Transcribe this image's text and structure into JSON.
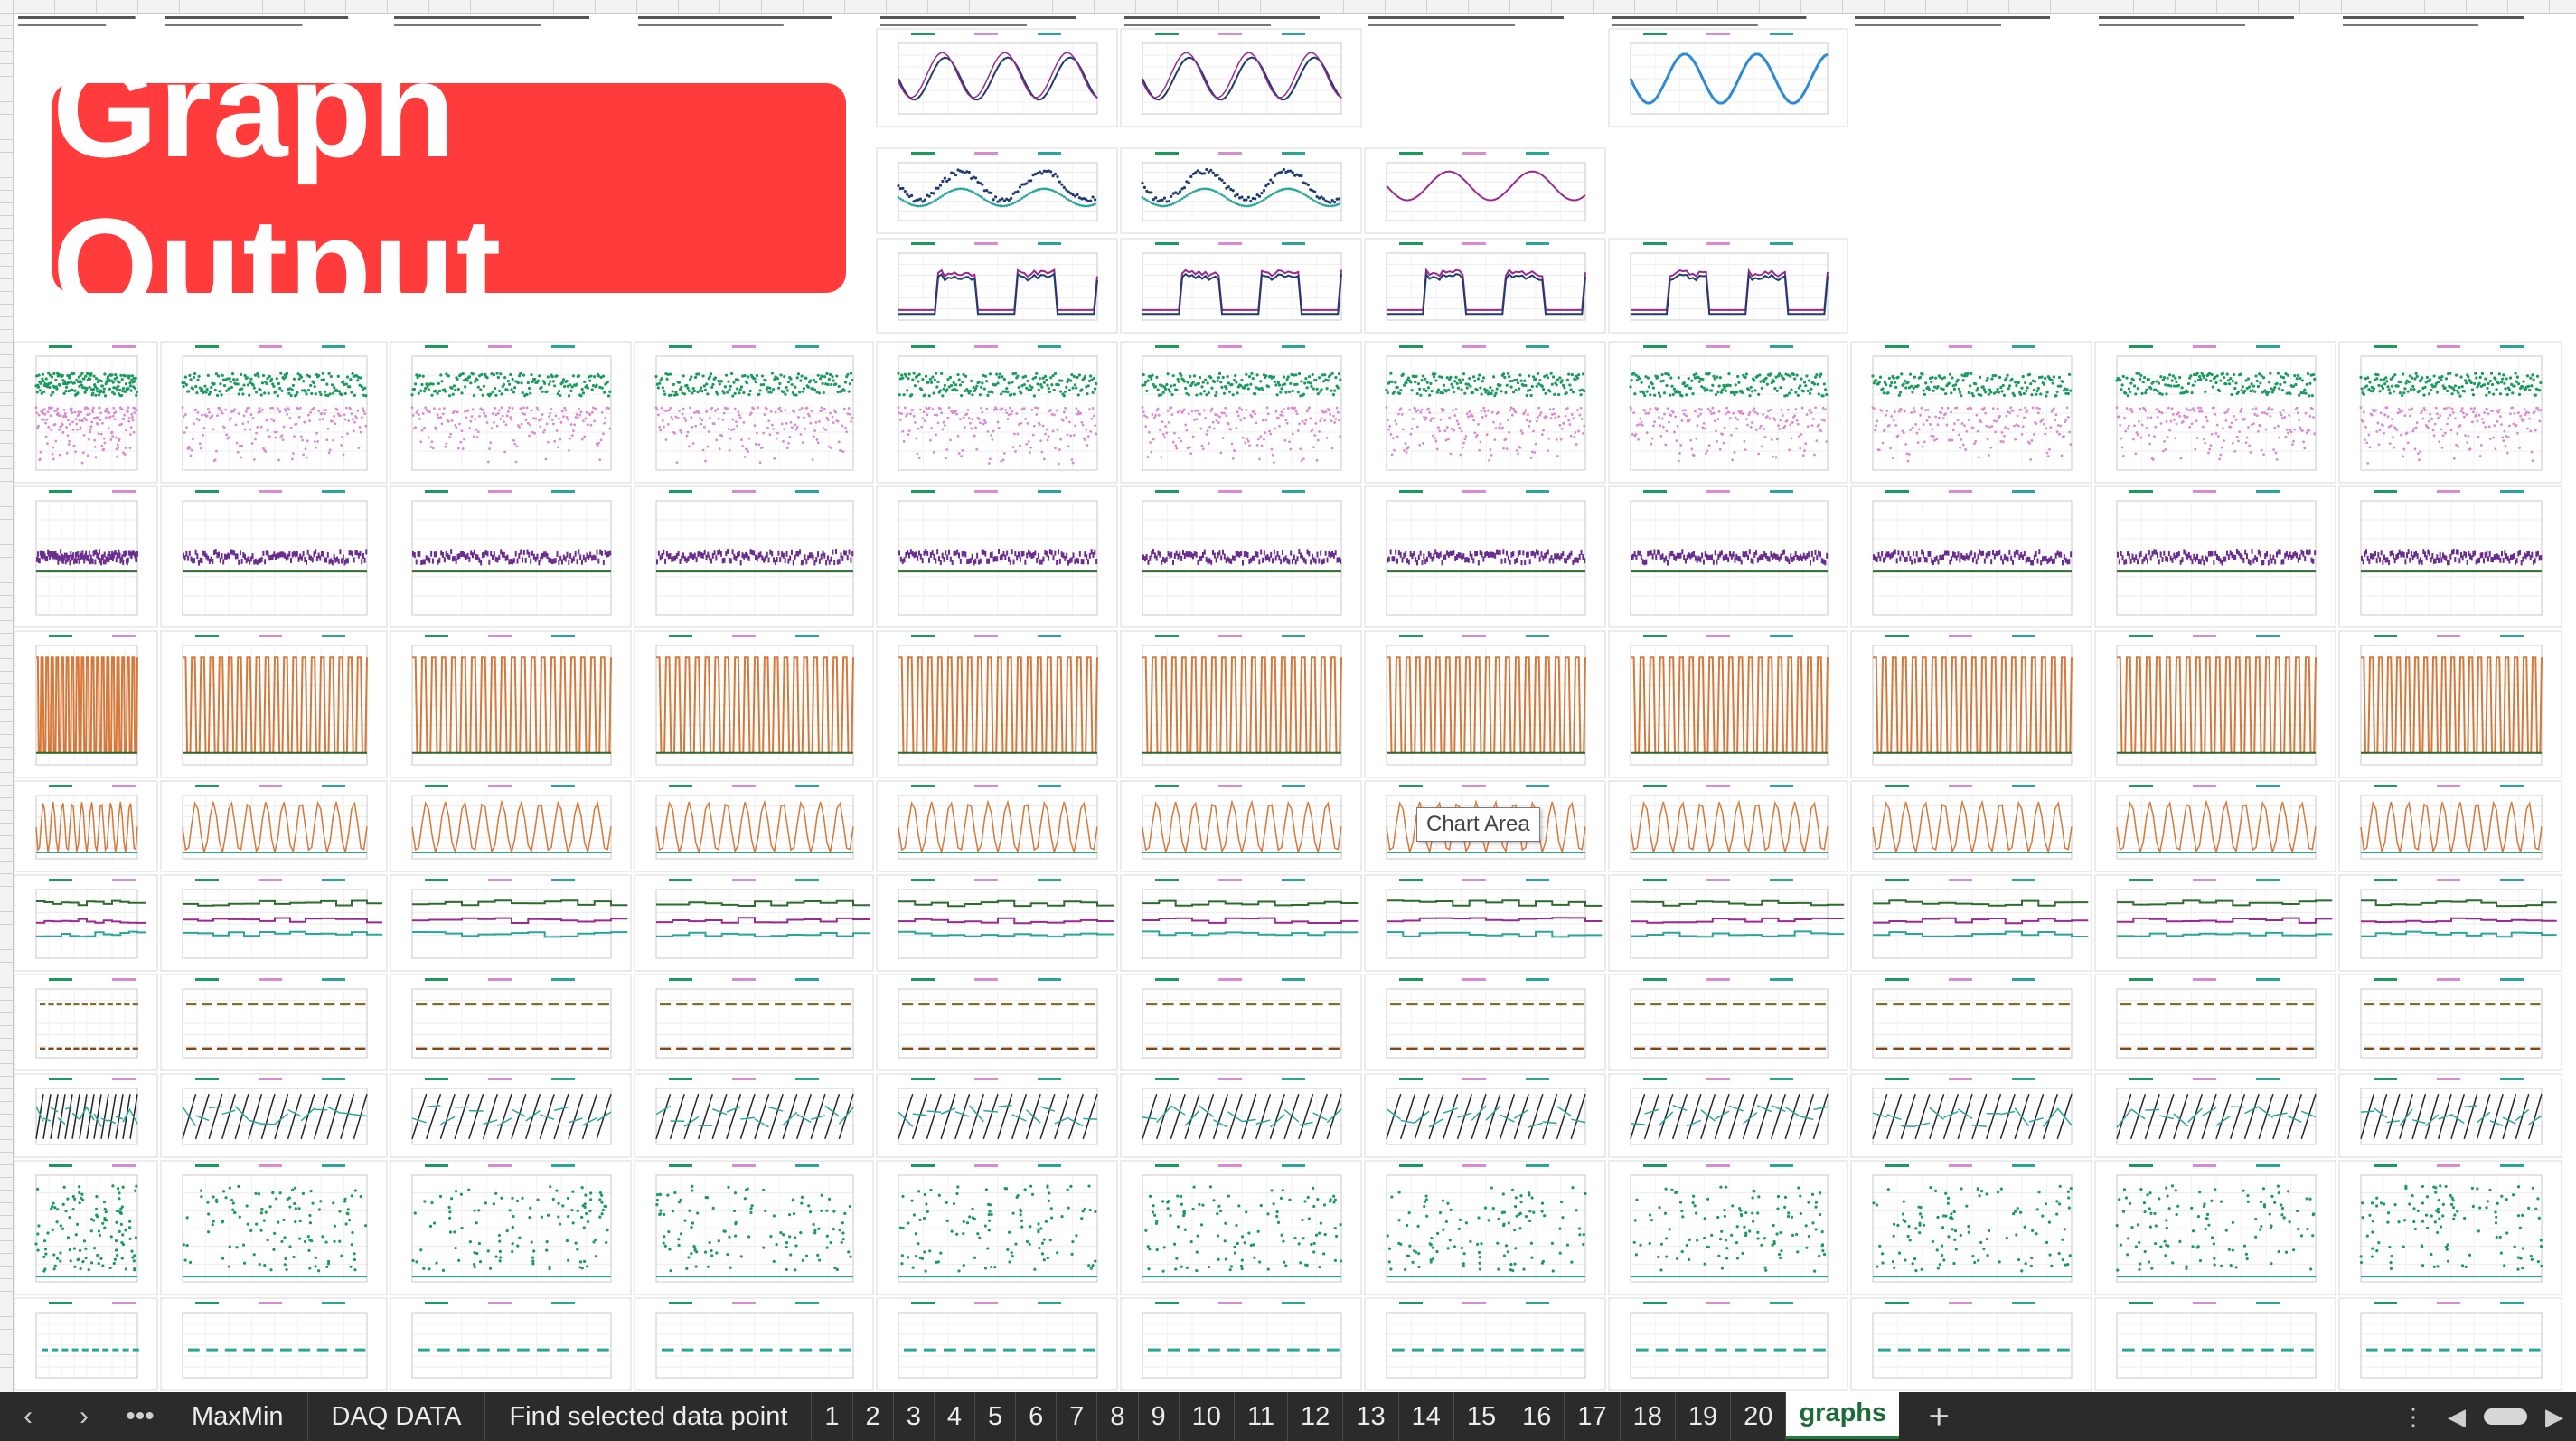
{
  "banner": {
    "title": "Graph Output"
  },
  "tooltip": {
    "text": "Chart Area"
  },
  "tabbar": {
    "prev_icon": "chevron-left-icon",
    "next_icon": "chevron-right-icon",
    "more_icon": "ellipsis-icon",
    "tabs": [
      "MaxMin",
      "DAQ DATA",
      "Find selected data point",
      "1",
      "2",
      "3",
      "4",
      "5",
      "6",
      "7",
      "8",
      "9",
      "10",
      "11",
      "12",
      "13",
      "14",
      "15",
      "16",
      "17",
      "18",
      "19",
      "20"
    ],
    "active_tab": "graphs",
    "add_label": "+",
    "options_icon": "vertical-ellipsis-icon",
    "scroll_left_icon": "triangle-left-icon",
    "scroll_right_icon": "triangle-right-icon"
  },
  "colors": {
    "green": "#1a9a5c",
    "pink": "#d98ad1",
    "purple": "#6a2c8f",
    "orange": "#d6783a",
    "darkgreen": "#2d6b2f",
    "teal": "#2aa59a",
    "navy": "#1f3b70",
    "blue": "#2e8ad6",
    "magenta": "#9a2a8f",
    "banner": "#ff3b3b",
    "tabbar": "#2b2b2b",
    "active_tab_text": "#1e6b3a"
  }
}
